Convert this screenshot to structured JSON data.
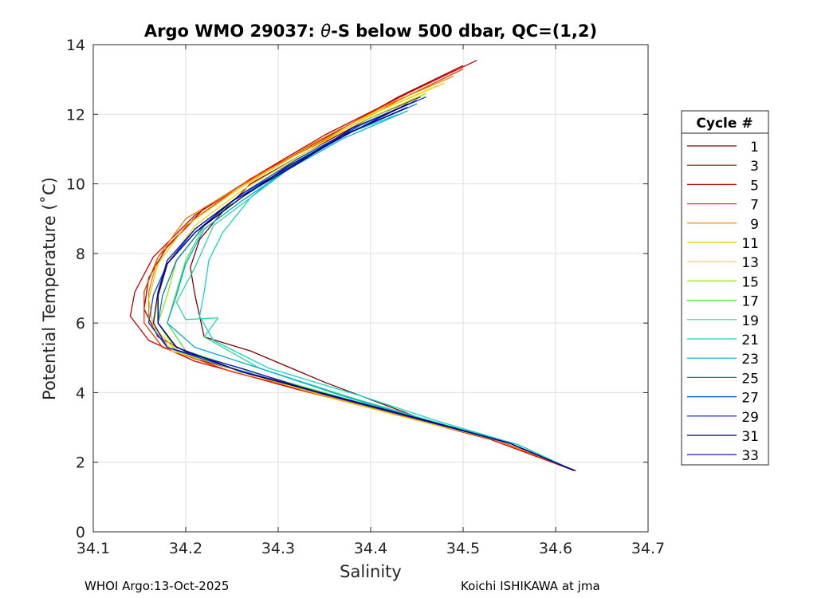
{
  "chart_data": {
    "type": "line",
    "title": "Argo WMO 29037: θ-S below 500 dbar,  QC=(1,2)",
    "title_parts": {
      "prefix": "Argo WMO 29037: ",
      "theta": "θ",
      "suffix": "-S below 500 dbar,  QC=(1,2)"
    },
    "xlabel": "Salinity",
    "ylabel": "Potential Temperature (˚C)",
    "xlim": [
      34.1,
      34.7
    ],
    "ylim": [
      0,
      14
    ],
    "xticks": [
      "34.1",
      "34.2",
      "34.3",
      "34.4",
      "34.5",
      "34.6",
      "34.7"
    ],
    "yticks": [
      "0",
      "2",
      "4",
      "6",
      "8",
      "10",
      "12",
      "14"
    ],
    "grid": true,
    "legend_title": "Cycle #",
    "legend_position": "right",
    "series": [
      {
        "name": "1",
        "color": "#800000",
        "points": [
          [
            34.454,
            12.5
          ],
          [
            34.4,
            11.9
          ],
          [
            34.33,
            10.9
          ],
          [
            34.27,
            10.0
          ],
          [
            34.24,
            9.2
          ],
          [
            34.215,
            8.4
          ],
          [
            34.205,
            7.6
          ],
          [
            34.21,
            6.8
          ],
          [
            34.22,
            5.6
          ],
          [
            34.27,
            5.2
          ],
          [
            34.35,
            4.3
          ],
          [
            34.45,
            3.3
          ],
          [
            34.55,
            2.55
          ],
          [
            34.622,
            1.75
          ]
        ]
      },
      {
        "name": "3",
        "color": "#a30000",
        "points": [
          [
            34.5,
            13.4
          ],
          [
            34.43,
            12.5
          ],
          [
            34.35,
            11.3
          ],
          [
            34.28,
            10.3
          ],
          [
            34.22,
            9.3
          ],
          [
            34.18,
            8.2
          ],
          [
            34.16,
            7.3
          ],
          [
            34.155,
            6.4
          ],
          [
            34.17,
            5.6
          ],
          [
            34.22,
            4.9
          ],
          [
            34.32,
            4.2
          ],
          [
            34.43,
            3.4
          ],
          [
            34.53,
            2.7
          ],
          [
            34.62,
            1.78
          ]
        ]
      },
      {
        "name": "5",
        "color": "#c80000",
        "points": [
          [
            34.515,
            13.55
          ],
          [
            34.44,
            12.6
          ],
          [
            34.35,
            11.4
          ],
          [
            34.28,
            10.3
          ],
          [
            34.21,
            9.1
          ],
          [
            34.165,
            7.9
          ],
          [
            34.145,
            6.9
          ],
          [
            34.14,
            6.2
          ],
          [
            34.16,
            5.5
          ],
          [
            34.21,
            4.9
          ],
          [
            34.32,
            4.1
          ],
          [
            34.43,
            3.35
          ],
          [
            34.53,
            2.65
          ],
          [
            34.62,
            1.76
          ]
        ]
      },
      {
        "name": "7",
        "color": "#e63c00",
        "points": [
          [
            34.5,
            13.3
          ],
          [
            34.43,
            12.4
          ],
          [
            34.35,
            11.25
          ],
          [
            34.27,
            10.15
          ],
          [
            34.21,
            9.0
          ],
          [
            34.17,
            7.9
          ],
          [
            34.155,
            6.9
          ],
          [
            34.155,
            6.0
          ],
          [
            34.175,
            5.3
          ],
          [
            34.25,
            4.6
          ],
          [
            34.34,
            4.0
          ],
          [
            34.44,
            3.3
          ],
          [
            34.54,
            2.6
          ],
          [
            34.62,
            1.77
          ]
        ]
      },
      {
        "name": "9",
        "color": "#f07800",
        "points": [
          [
            34.49,
            13.1
          ],
          [
            34.42,
            12.3
          ],
          [
            34.34,
            11.2
          ],
          [
            34.27,
            10.1
          ],
          [
            34.2,
            9.0
          ],
          [
            34.17,
            7.9
          ],
          [
            34.16,
            6.9
          ],
          [
            34.16,
            6.0
          ],
          [
            34.18,
            5.3
          ],
          [
            34.25,
            4.7
          ],
          [
            34.34,
            4.0
          ],
          [
            34.44,
            3.3
          ],
          [
            34.54,
            2.6
          ],
          [
            34.62,
            1.77
          ]
        ]
      },
      {
        "name": "11",
        "color": "#e8c800",
        "points": [
          [
            34.48,
            12.9
          ],
          [
            34.41,
            12.1
          ],
          [
            34.33,
            11.0
          ],
          [
            34.26,
            9.9
          ],
          [
            34.2,
            8.8
          ],
          [
            34.17,
            7.7
          ],
          [
            34.16,
            6.7
          ],
          [
            34.165,
            5.9
          ],
          [
            34.19,
            5.2
          ],
          [
            34.26,
            4.6
          ],
          [
            34.35,
            3.9
          ],
          [
            34.45,
            3.2
          ],
          [
            34.55,
            2.55
          ],
          [
            34.62,
            1.76
          ]
        ]
      },
      {
        "name": "13",
        "color": "#f0e000",
        "points": [
          [
            34.47,
            12.8
          ],
          [
            34.4,
            12.0
          ],
          [
            34.33,
            10.9
          ],
          [
            34.26,
            9.8
          ],
          [
            34.21,
            8.8
          ],
          [
            34.18,
            7.7
          ],
          [
            34.17,
            6.7
          ],
          [
            34.165,
            5.9
          ],
          [
            34.185,
            5.2
          ],
          [
            34.25,
            4.7
          ],
          [
            34.35,
            3.95
          ],
          [
            34.45,
            3.25
          ],
          [
            34.55,
            2.55
          ],
          [
            34.62,
            1.76
          ]
        ]
      },
      {
        "name": "15",
        "color": "#96e600",
        "points": [
          [
            34.46,
            12.6
          ],
          [
            34.4,
            11.9
          ],
          [
            34.33,
            10.8
          ],
          [
            34.27,
            9.8
          ],
          [
            34.22,
            8.8
          ],
          [
            34.19,
            7.8
          ],
          [
            34.18,
            6.8
          ],
          [
            34.17,
            6.0
          ],
          [
            34.19,
            5.2
          ],
          [
            34.26,
            4.6
          ],
          [
            34.36,
            3.9
          ],
          [
            34.46,
            3.2
          ],
          [
            34.55,
            2.55
          ],
          [
            34.62,
            1.76
          ]
        ]
      },
      {
        "name": "17",
        "color": "#46e646",
        "points": [
          [
            34.45,
            12.4
          ],
          [
            34.39,
            11.7
          ],
          [
            34.32,
            10.7
          ],
          [
            34.26,
            9.7
          ],
          [
            34.22,
            8.8
          ],
          [
            34.2,
            7.8
          ],
          [
            34.19,
            6.9
          ],
          [
            34.18,
            6.0
          ],
          [
            34.2,
            5.2
          ],
          [
            34.27,
            4.6
          ],
          [
            34.37,
            3.85
          ],
          [
            34.46,
            3.2
          ],
          [
            34.55,
            2.55
          ],
          [
            34.62,
            1.76
          ]
        ]
      },
      {
        "name": "19",
        "color": "#28d796",
        "points": [
          [
            34.44,
            12.2
          ],
          [
            34.38,
            11.5
          ],
          [
            34.32,
            10.6
          ],
          [
            34.27,
            9.6
          ],
          [
            34.23,
            8.8
          ],
          [
            34.21,
            7.6
          ],
          [
            34.19,
            6.6
          ],
          [
            34.2,
            6.1
          ],
          [
            34.235,
            6.15
          ],
          [
            34.22,
            5.6
          ],
          [
            34.28,
            4.7
          ],
          [
            34.38,
            3.85
          ],
          [
            34.47,
            3.15
          ],
          [
            34.56,
            2.5
          ],
          [
            34.62,
            1.76
          ]
        ]
      },
      {
        "name": "21",
        "color": "#14d2c8",
        "points": [
          [
            34.43,
            12.0
          ],
          [
            34.37,
            11.4
          ],
          [
            34.31,
            10.5
          ],
          [
            34.27,
            9.6
          ],
          [
            34.24,
            8.6
          ],
          [
            34.225,
            7.8
          ],
          [
            34.22,
            6.9
          ],
          [
            34.215,
            6.2
          ],
          [
            34.23,
            5.5
          ],
          [
            34.29,
            4.7
          ],
          [
            34.39,
            3.9
          ],
          [
            34.47,
            3.2
          ],
          [
            34.56,
            2.5
          ],
          [
            34.62,
            1.76
          ]
        ]
      },
      {
        "name": "23",
        "color": "#00aad2",
        "points": [
          [
            34.44,
            12.1
          ],
          [
            34.37,
            11.3
          ],
          [
            34.31,
            10.4
          ],
          [
            34.26,
            9.5
          ],
          [
            34.22,
            8.7
          ],
          [
            34.2,
            7.7
          ],
          [
            34.19,
            6.8
          ],
          [
            34.18,
            6.0
          ],
          [
            34.21,
            5.3
          ],
          [
            34.28,
            4.7
          ],
          [
            34.37,
            3.9
          ],
          [
            34.46,
            3.2
          ],
          [
            34.55,
            2.55
          ],
          [
            34.62,
            1.76
          ]
        ]
      },
      {
        "name": "25",
        "color": "#0078c8",
        "points": [
          [
            34.45,
            12.3
          ],
          [
            34.38,
            11.5
          ],
          [
            34.32,
            10.6
          ],
          [
            34.26,
            9.6
          ],
          [
            34.22,
            8.8
          ],
          [
            34.19,
            7.8
          ],
          [
            34.175,
            6.8
          ],
          [
            34.17,
            6.0
          ],
          [
            34.19,
            5.3
          ],
          [
            34.26,
            4.6
          ],
          [
            34.36,
            3.9
          ],
          [
            34.46,
            3.2
          ],
          [
            34.55,
            2.55
          ],
          [
            34.62,
            1.76
          ]
        ]
      },
      {
        "name": "27",
        "color": "#0046e6",
        "points": [
          [
            34.46,
            12.5
          ],
          [
            34.39,
            11.7
          ],
          [
            34.32,
            10.7
          ],
          [
            34.26,
            9.7
          ],
          [
            34.21,
            8.7
          ],
          [
            34.18,
            7.7
          ],
          [
            34.165,
            6.8
          ],
          [
            34.16,
            6.0
          ],
          [
            34.18,
            5.3
          ],
          [
            34.25,
            4.7
          ],
          [
            34.35,
            3.95
          ],
          [
            34.45,
            3.25
          ],
          [
            34.55,
            2.55
          ],
          [
            34.62,
            1.76
          ]
        ]
      },
      {
        "name": "29",
        "color": "#1414b4",
        "points": [
          [
            34.45,
            12.4
          ],
          [
            34.38,
            11.6
          ],
          [
            34.32,
            10.6
          ],
          [
            34.26,
            9.7
          ],
          [
            34.21,
            8.7
          ],
          [
            34.18,
            7.8
          ],
          [
            34.17,
            6.9
          ],
          [
            34.165,
            6.0
          ],
          [
            34.18,
            5.3
          ],
          [
            34.26,
            4.7
          ],
          [
            34.35,
            3.95
          ],
          [
            34.45,
            3.25
          ],
          [
            34.55,
            2.55
          ],
          [
            34.62,
            1.76
          ]
        ]
      },
      {
        "name": "31",
        "color": "#000064",
        "points": [
          [
            34.44,
            12.3
          ],
          [
            34.38,
            11.5
          ],
          [
            34.31,
            10.5
          ],
          [
            34.26,
            9.6
          ],
          [
            34.21,
            8.6
          ],
          [
            34.18,
            7.7
          ],
          [
            34.17,
            6.8
          ],
          [
            34.17,
            6.0
          ],
          [
            34.19,
            5.3
          ],
          [
            34.26,
            4.6
          ],
          [
            34.36,
            3.9
          ],
          [
            34.46,
            3.2
          ],
          [
            34.55,
            2.55
          ],
          [
            34.62,
            1.76
          ]
        ]
      },
      {
        "name": "33",
        "color": "#00008c",
        "points": [
          [
            34.44,
            12.2
          ],
          [
            34.37,
            11.4
          ],
          [
            34.31,
            10.4
          ],
          [
            34.25,
            9.5
          ],
          [
            34.21,
            8.6
          ],
          [
            34.18,
            7.7
          ],
          [
            34.17,
            6.8
          ],
          [
            34.17,
            6.0
          ],
          [
            34.19,
            5.3
          ],
          [
            34.26,
            4.6
          ],
          [
            34.36,
            3.9
          ],
          [
            34.46,
            3.2
          ],
          [
            34.55,
            2.55
          ],
          [
            34.62,
            1.76
          ]
        ]
      }
    ]
  },
  "footer": {
    "left": "WHOI Argo:13-Oct-2025",
    "right": "Koichi ISHIKAWA at jma"
  }
}
